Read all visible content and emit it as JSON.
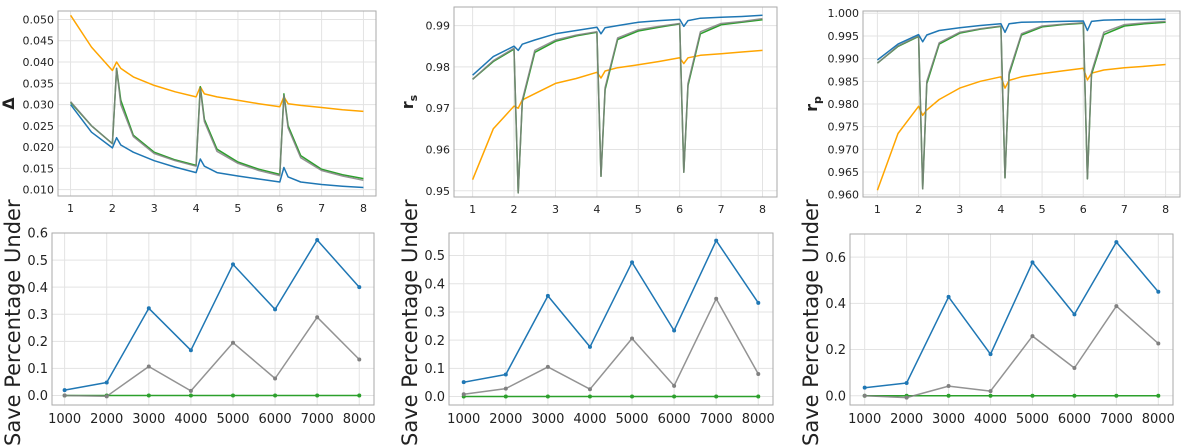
{
  "colors": {
    "blue": "#1f77b4",
    "orange": "#ffa500",
    "green": "#2ca02c",
    "gray": "#808080"
  },
  "chart_data": [
    {
      "type": "line",
      "ylabel": "Δ",
      "ylabel_sub": "",
      "grid": true,
      "xlim": [
        0.7,
        8.3
      ],
      "ylim": [
        0.0085,
        0.052
      ],
      "xticks": [
        "1",
        "2",
        "3",
        "4",
        "5",
        "6",
        "7",
        "8"
      ],
      "yticks": [
        "0.010",
        "0.015",
        "0.020",
        "0.025",
        "0.030",
        "0.035",
        "0.040",
        "0.045",
        "0.050"
      ],
      "x": [
        1,
        1.5,
        2,
        2.1,
        2.2,
        2.5,
        3,
        3.5,
        4,
        4.1,
        4.2,
        4.5,
        5,
        5.5,
        6,
        6.1,
        6.2,
        6.5,
        7,
        7.5,
        8
      ],
      "series": [
        {
          "color": "orange",
          "values": [
            0.051,
            0.0435,
            0.038,
            0.04,
            0.0385,
            0.0365,
            0.0345,
            0.033,
            0.0318,
            0.0342,
            0.0325,
            0.0318,
            0.031,
            0.0302,
            0.0295,
            0.0318,
            0.0302,
            0.0298,
            0.0293,
            0.0288,
            0.0284
          ]
        },
        {
          "color": "green",
          "values": [
            0.0305,
            0.025,
            0.0208,
            0.0385,
            0.031,
            0.0228,
            0.0188,
            0.017,
            0.0157,
            0.0342,
            0.0265,
            0.0195,
            0.0165,
            0.0148,
            0.0136,
            0.0325,
            0.025,
            0.018,
            0.0148,
            0.0135,
            0.0126
          ]
        },
        {
          "color": "gray",
          "values": [
            0.0307,
            0.025,
            0.0208,
            0.0385,
            0.03,
            0.0225,
            0.0185,
            0.0168,
            0.0155,
            0.0338,
            0.026,
            0.019,
            0.0162,
            0.0145,
            0.0133,
            0.0322,
            0.0245,
            0.0175,
            0.0145,
            0.0132,
            0.0122
          ]
        },
        {
          "color": "blue",
          "values": [
            0.03,
            0.0235,
            0.0198,
            0.0222,
            0.0205,
            0.0188,
            0.0168,
            0.0153,
            0.014,
            0.0172,
            0.0155,
            0.014,
            0.0132,
            0.0125,
            0.0118,
            0.0152,
            0.013,
            0.0118,
            0.0112,
            0.0108,
            0.0105
          ]
        }
      ]
    },
    {
      "type": "line",
      "ylabel": "r",
      "ylabel_sub": "s",
      "grid": true,
      "xlim": [
        0.55,
        8.35
      ],
      "ylim": [
        0.9485,
        0.9945
      ],
      "xticks": [
        "1",
        "2",
        "3",
        "4",
        "5",
        "6",
        "7",
        "8"
      ],
      "yticks": [
        "0.95",
        "0.96",
        "0.97",
        "0.98",
        "0.99"
      ],
      "x": [
        1,
        1.5,
        2,
        2.1,
        2.2,
        2.5,
        3,
        3.5,
        4,
        4.1,
        4.2,
        4.5,
        5,
        5.5,
        6,
        6.1,
        6.2,
        6.5,
        7,
        7.5,
        8
      ],
      "series": [
        {
          "color": "orange",
          "values": [
            0.9527,
            0.965,
            0.9705,
            0.97,
            0.972,
            0.9735,
            0.976,
            0.9772,
            0.9787,
            0.9773,
            0.979,
            0.9798,
            0.9805,
            0.9813,
            0.9822,
            0.9808,
            0.9822,
            0.9828,
            0.9832,
            0.9836,
            0.984
          ]
        },
        {
          "color": "green",
          "values": [
            0.977,
            0.9813,
            0.9843,
            0.9495,
            0.9715,
            0.9835,
            0.9862,
            0.9875,
            0.9884,
            0.9535,
            0.9745,
            0.9866,
            0.9887,
            0.9896,
            0.9904,
            0.9545,
            0.9755,
            0.988,
            0.9902,
            0.9908,
            0.9914
          ]
        },
        {
          "color": "gray",
          "values": [
            0.977,
            0.9815,
            0.9845,
            0.9495,
            0.972,
            0.984,
            0.9865,
            0.9877,
            0.9885,
            0.9535,
            0.975,
            0.987,
            0.989,
            0.9898,
            0.9905,
            0.9545,
            0.976,
            0.9885,
            0.9905,
            0.991,
            0.9917
          ]
        },
        {
          "color": "blue",
          "values": [
            0.978,
            0.9825,
            0.985,
            0.984,
            0.9855,
            0.9865,
            0.988,
            0.9888,
            0.9896,
            0.988,
            0.9895,
            0.99,
            0.9908,
            0.9912,
            0.9915,
            0.9898,
            0.9912,
            0.9918,
            0.992,
            0.9922,
            0.9925
          ]
        }
      ]
    },
    {
      "type": "line",
      "ylabel": "r",
      "ylabel_sub": "p",
      "grid": true,
      "xlim": [
        0.65,
        8.35
      ],
      "ylim": [
        0.9595,
        1.0005
      ],
      "xticks": [
        "1",
        "2",
        "3",
        "4",
        "5",
        "6",
        "7",
        "8"
      ],
      "yticks": [
        "0.960",
        "0.965",
        "0.970",
        "0.975",
        "0.980",
        "0.985",
        "0.990",
        "0.995",
        "1.000"
      ],
      "x": [
        1,
        1.5,
        2,
        2.1,
        2.2,
        2.5,
        3,
        3.5,
        4,
        4.1,
        4.2,
        4.5,
        5,
        5.5,
        6,
        6.1,
        6.2,
        6.5,
        7,
        7.5,
        8
      ],
      "series": [
        {
          "color": "orange",
          "values": [
            0.961,
            0.9735,
            0.9795,
            0.9775,
            0.9787,
            0.981,
            0.9835,
            0.985,
            0.986,
            0.9835,
            0.9852,
            0.986,
            0.9867,
            0.9873,
            0.9879,
            0.9853,
            0.9868,
            0.9875,
            0.988,
            0.9883,
            0.9887
          ]
        },
        {
          "color": "green",
          "values": [
            0.989,
            0.9927,
            0.9949,
            0.9613,
            0.9845,
            0.9932,
            0.9956,
            0.9965,
            0.9971,
            0.9637,
            0.9865,
            0.9952,
            0.997,
            0.9975,
            0.9978,
            0.9635,
            0.9865,
            0.9953,
            0.9972,
            0.9977,
            0.998
          ]
        },
        {
          "color": "gray",
          "values": [
            0.989,
            0.9928,
            0.995,
            0.9613,
            0.985,
            0.9935,
            0.9958,
            0.9966,
            0.9972,
            0.9637,
            0.987,
            0.9955,
            0.9972,
            0.9976,
            0.9979,
            0.9635,
            0.987,
            0.9958,
            0.9975,
            0.9979,
            0.9982
          ]
        },
        {
          "color": "blue",
          "values": [
            0.9897,
            0.9932,
            0.9953,
            0.9937,
            0.9952,
            0.9962,
            0.9968,
            0.9973,
            0.9977,
            0.9958,
            0.9977,
            0.998,
            0.9981,
            0.9982,
            0.9983,
            0.9962,
            0.9982,
            0.9985,
            0.9986,
            0.9986,
            0.9987
          ]
        }
      ]
    },
    {
      "type": "line",
      "ylabel": "Save Percentage Under",
      "ylabel_sub": "",
      "grid": true,
      "markers": true,
      "xlim": [
        700,
        8350
      ],
      "ylim": [
        -0.035,
        0.6
      ],
      "xticks": [
        "1000",
        "2000",
        "3000",
        "4000",
        "5000",
        "6000",
        "7000",
        "8000"
      ],
      "yticks": [
        "0.0",
        "0.1",
        "0.2",
        "0.3",
        "0.4",
        "0.5",
        "0.6"
      ],
      "x": [
        1000,
        2000,
        3000,
        4000,
        5000,
        6000,
        7000,
        8000
      ],
      "series": [
        {
          "color": "green",
          "values": [
            0,
            0,
            0,
            0,
            0,
            0,
            0,
            0
          ]
        },
        {
          "color": "gray",
          "values": [
            0,
            -0.003,
            0.107,
            0.017,
            0.195,
            0.063,
            0.289,
            0.133
          ]
        },
        {
          "color": "blue",
          "values": [
            0.02,
            0.048,
            0.322,
            0.167,
            0.484,
            0.318,
            0.574,
            0.4
          ]
        }
      ]
    },
    {
      "type": "line",
      "ylabel": "Save Percentage Under",
      "ylabel_sub": "",
      "grid": true,
      "markers": true,
      "xlim": [
        650,
        8350
      ],
      "ylim": [
        -0.03,
        0.58
      ],
      "xticks": [
        "1000",
        "2000",
        "3000",
        "4000",
        "5000",
        "6000",
        "7000",
        "8000"
      ],
      "yticks": [
        "0.0",
        "0.1",
        "0.2",
        "0.3",
        "0.4",
        "0.5"
      ],
      "x": [
        1000,
        2000,
        3000,
        4000,
        5000,
        6000,
        7000,
        8000
      ],
      "series": [
        {
          "color": "green",
          "values": [
            0,
            0,
            0,
            0,
            0,
            0,
            0,
            0
          ]
        },
        {
          "color": "gray",
          "values": [
            0.008,
            0.028,
            0.105,
            0.026,
            0.206,
            0.038,
            0.347,
            0.08
          ]
        },
        {
          "color": "blue",
          "values": [
            0.051,
            0.078,
            0.357,
            0.176,
            0.476,
            0.234,
            0.553,
            0.332
          ]
        }
      ]
    },
    {
      "type": "line",
      "ylabel": "Save Percentage Under",
      "ylabel_sub": "",
      "grid": true,
      "markers": true,
      "xlim": [
        650,
        8350
      ],
      "ylim": [
        -0.04,
        0.7
      ],
      "xticks": [
        "1000",
        "2000",
        "3000",
        "4000",
        "5000",
        "6000",
        "7000",
        "8000"
      ],
      "yticks": [
        "0.0",
        "0.2",
        "0.4",
        "0.6"
      ],
      "x": [
        1000,
        2000,
        3000,
        4000,
        5000,
        6000,
        7000,
        8000
      ],
      "series": [
        {
          "color": "green",
          "values": [
            0,
            0,
            0,
            0,
            0,
            0,
            0,
            0
          ]
        },
        {
          "color": "gray",
          "values": [
            0,
            -0.008,
            0.042,
            0.02,
            0.258,
            0.12,
            0.388,
            0.226
          ]
        },
        {
          "color": "blue",
          "values": [
            0.035,
            0.055,
            0.428,
            0.18,
            0.577,
            0.352,
            0.665,
            0.45
          ]
        }
      ]
    }
  ]
}
